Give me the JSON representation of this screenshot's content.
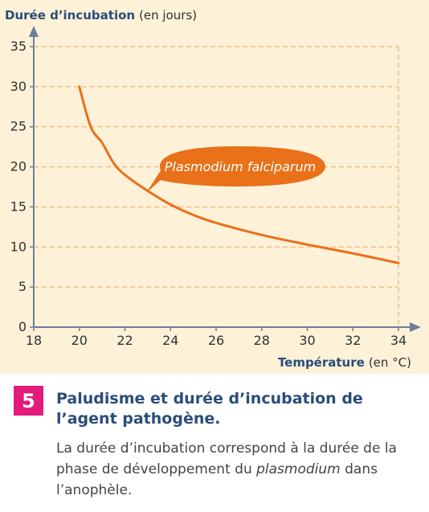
{
  "chart_data": {
    "type": "line",
    "title": "",
    "ylabel": "Durée d’incubation",
    "ylabel_unit": "(en jours)",
    "xlabel": "Température",
    "xlabel_unit": "(en °C)",
    "xlim": [
      18,
      34
    ],
    "ylim": [
      0,
      35
    ],
    "x_ticks": [
      "18",
      "20",
      "22",
      "24",
      "26",
      "28",
      "30",
      "32",
      "34"
    ],
    "y_ticks": [
      "0",
      "5",
      "10",
      "15",
      "20",
      "25",
      "30",
      "35"
    ],
    "grid": true,
    "series": [
      {
        "name": "Plasmodium falciparum",
        "color": "#e8711a",
        "x": [
          20,
          20.5,
          21,
          21.5,
          22,
          23,
          24,
          25,
          26,
          28,
          30,
          32,
          34
        ],
        "y": [
          30,
          25,
          23,
          20.5,
          19,
          17,
          15.3,
          14,
          13,
          11.5,
          10.3,
          9.2,
          8
        ]
      }
    ]
  },
  "caption": {
    "number": "5",
    "title": "Paludisme et durée d’incubation de l’agent pathogène.",
    "body_before": "La durée d’incubation correspond à la durée de la phase de développement du ",
    "body_italic": "plasmodium",
    "body_after": " dans l’anophèle."
  },
  "colors": {
    "curve": "#e8711a",
    "grid": "#f0a860",
    "axis": "#6e7f98",
    "title_blue": "#2a4d7a",
    "badge": "#e31b7b",
    "panel_bg": "#fdf1d8"
  }
}
